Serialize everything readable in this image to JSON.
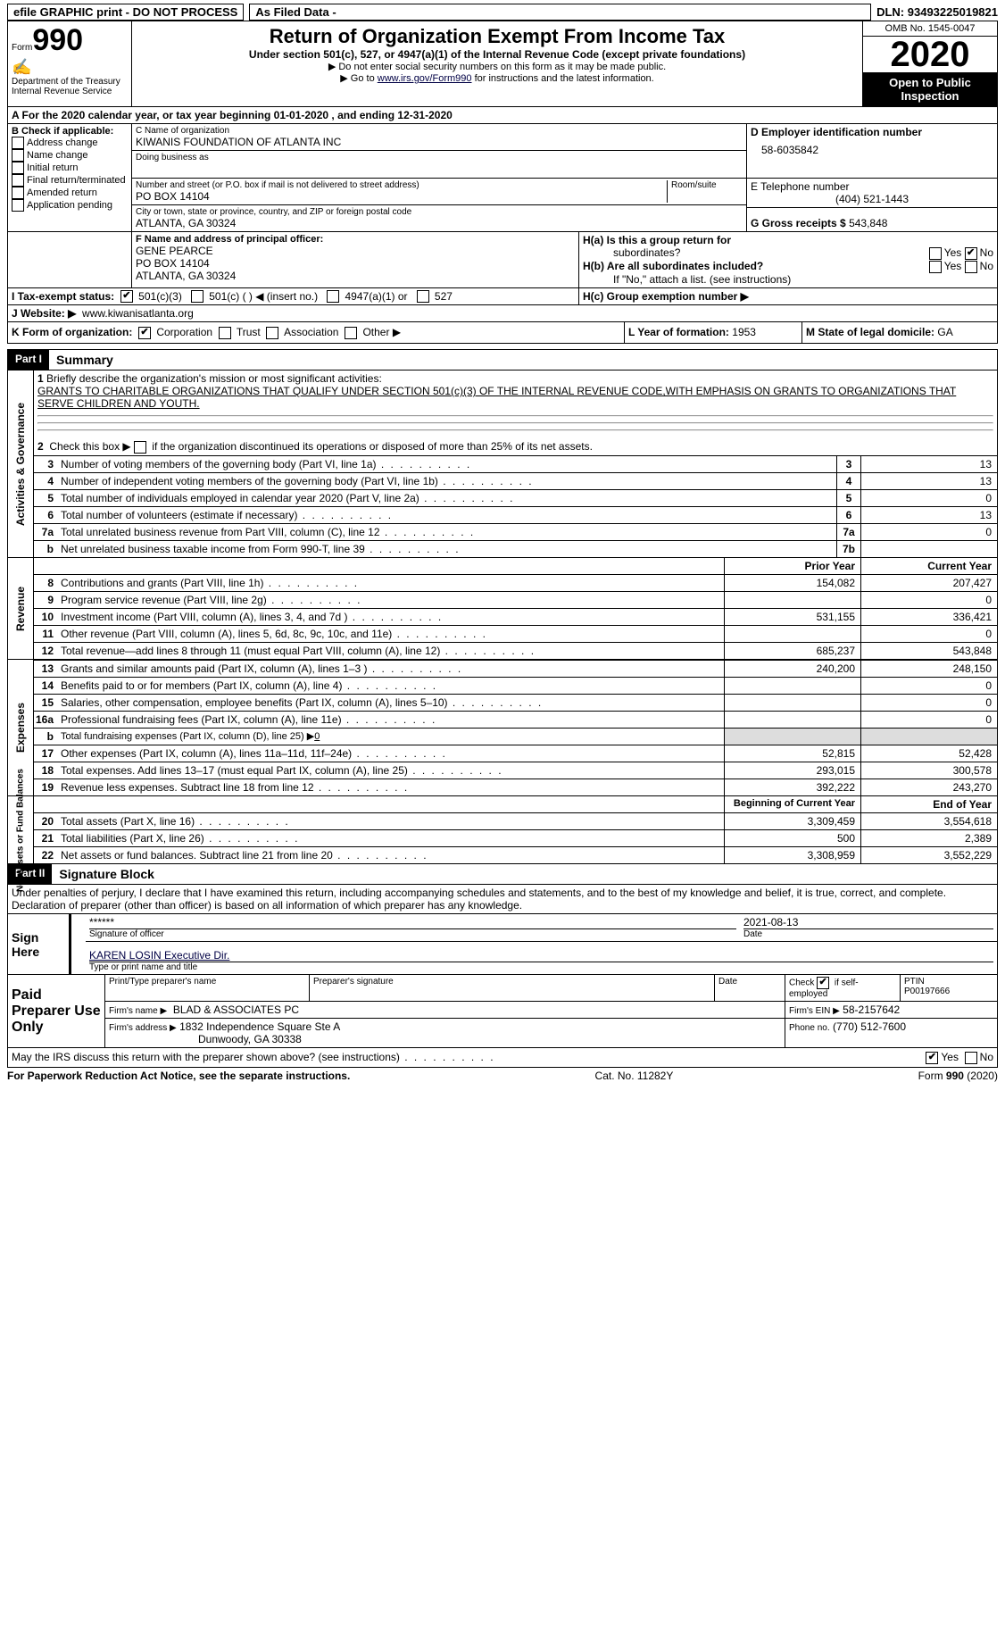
{
  "topbar": {
    "efile": "efile GRAPHIC print - DO NOT PROCESS",
    "asfd": "As Filed Data -",
    "dln_label": "DLN:",
    "dln": "93493225019821"
  },
  "header": {
    "form_label": "Form",
    "form_no": "990",
    "dept": "Department of the Treasury",
    "irs": "Internal Revenue Service",
    "title": "Return of Organization Exempt From Income Tax",
    "sub1": "Under section 501(c), 527, or 4947(a)(1) of the Internal Revenue Code (except private foundations)",
    "sub2": "▶ Do not enter social security numbers on this form as it may be made public.",
    "sub3_pre": "▶ Go to ",
    "sub3_link": "www.irs.gov/Form990",
    "sub3_post": " for instructions and the latest information.",
    "omb": "OMB No. 1545-0047",
    "year": "2020",
    "open": "Open to Public Inspection"
  },
  "rowA": {
    "pre": "A  For the 2020 calendar year, or tax year beginning ",
    "begin": "01-01-2020",
    "mid": " , and ending ",
    "end": "12-31-2020"
  },
  "B": {
    "hdr": "B Check if applicable:",
    "items": [
      "Address change",
      "Name change",
      "Initial return",
      "Final return/terminated",
      "Amended return",
      "Application pending"
    ]
  },
  "C": {
    "name_lbl": "C Name of organization",
    "name": "KIWANIS FOUNDATION OF ATLANTA INC",
    "dba_lbl": "Doing business as",
    "dba": "",
    "street_lbl": "Number and street (or P.O. box if mail is not delivered to street address)",
    "room_lbl": "Room/suite",
    "street": "PO BOX 14104",
    "city_lbl": "City or town, state or province, country, and ZIP or foreign postal code",
    "city": "ATLANTA, GA  30324"
  },
  "D": {
    "lbl": "D Employer identification number",
    "val": "58-6035842"
  },
  "E": {
    "lbl": "E Telephone number",
    "val": "(404) 521-1443"
  },
  "G": {
    "lbl": "G Gross receipts $",
    "val": "543,848"
  },
  "F": {
    "lbl": "F  Name and address of principal officer:",
    "name": "GENE PEARCE",
    "l1": "PO BOX 14104",
    "l2": "ATLANTA, GA  30324"
  },
  "H": {
    "a": "H(a)  Is this a group return for",
    "a2": "subordinates?",
    "b": "H(b)  Are all subordinates included?",
    "note": "If \"No,\" attach a list. (see instructions)",
    "c": "H(c)  Group exemption number ▶",
    "yes": "Yes",
    "no": "No"
  },
  "I": {
    "lbl": "I  Tax-exempt status:",
    "o1": "501(c)(3)",
    "o2": "501(c) (   ) ◀ (insert no.)",
    "o3": "4947(a)(1) or",
    "o4": "527"
  },
  "J": {
    "lbl": "J  Website: ▶",
    "val": "www.kiwanisatlanta.org"
  },
  "K": {
    "lbl": "K Form of organization:",
    "o1": "Corporation",
    "o2": "Trust",
    "o3": "Association",
    "o4": "Other ▶"
  },
  "L": {
    "lbl": "L Year of formation:",
    "val": "1953"
  },
  "M": {
    "lbl": "M State of legal domicile:",
    "val": "GA"
  },
  "partI": {
    "num": "Part I",
    "title": "Summary"
  },
  "gov": {
    "side": "Activities & Governance",
    "l1_lbl": "Briefly describe the organization's mission or most significant activities:",
    "l1_txt": "GRANTS TO CHARITABLE ORGANIZATIONS THAT QUALIFY UNDER SECTION 501(c)(3) OF THE INTERNAL REVENUE CODE,WITH EMPHASIS ON GRANTS TO ORGANIZATIONS THAT SERVE CHILDREN AND YOUTH.",
    "l2": "Check this box ▶       if the organization discontinued its operations or disposed of more than 25% of its net assets.",
    "rows": [
      {
        "n": "3",
        "d": "Number of voting members of the governing body (Part VI, line 1a)",
        "b": "3",
        "v": "13"
      },
      {
        "n": "4",
        "d": "Number of independent voting members of the governing body (Part VI, line 1b)",
        "b": "4",
        "v": "13"
      },
      {
        "n": "5",
        "d": "Total number of individuals employed in calendar year 2020 (Part V, line 2a)",
        "b": "5",
        "v": "0"
      },
      {
        "n": "6",
        "d": "Total number of volunteers (estimate if necessary)",
        "b": "6",
        "v": "13"
      },
      {
        "n": "7a",
        "d": "Total unrelated business revenue from Part VIII, column (C), line 12",
        "b": "7a",
        "v": "0"
      },
      {
        "n": "b",
        "d": "Net unrelated business taxable income from Form 990-T, line 39",
        "b": "7b",
        "v": ""
      }
    ]
  },
  "colhdr": {
    "py": "Prior Year",
    "cy": "Current Year"
  },
  "rev": {
    "side": "Revenue",
    "rows": [
      {
        "n": "8",
        "d": "Contributions and grants (Part VIII, line 1h)",
        "py": "154,082",
        "cy": "207,427"
      },
      {
        "n": "9",
        "d": "Program service revenue (Part VIII, line 2g)",
        "py": "",
        "cy": "0"
      },
      {
        "n": "10",
        "d": "Investment income (Part VIII, column (A), lines 3, 4, and 7d )",
        "py": "531,155",
        "cy": "336,421"
      },
      {
        "n": "11",
        "d": "Other revenue (Part VIII, column (A), lines 5, 6d, 8c, 9c, 10c, and 11e)",
        "py": "",
        "cy": "0"
      },
      {
        "n": "12",
        "d": "Total revenue—add lines 8 through 11 (must equal Part VIII, column (A), line 12)",
        "py": "685,237",
        "cy": "543,848"
      }
    ]
  },
  "exp": {
    "side": "Expenses",
    "rows": [
      {
        "n": "13",
        "d": "Grants and similar amounts paid (Part IX, column (A), lines 1–3 )",
        "py": "240,200",
        "cy": "248,150"
      },
      {
        "n": "14",
        "d": "Benefits paid to or for members (Part IX, column (A), line 4)",
        "py": "",
        "cy": "0"
      },
      {
        "n": "15",
        "d": "Salaries, other compensation, employee benefits (Part IX, column (A), lines 5–10)",
        "py": "",
        "cy": "0"
      },
      {
        "n": "16a",
        "d": "Professional fundraising fees (Part IX, column (A), line 11e)",
        "py": "",
        "cy": "0"
      }
    ],
    "l16b_pre": "Total fundraising expenses (Part IX, column (D), line 25) ▶",
    "l16b_val": "0",
    "rows2": [
      {
        "n": "17",
        "d": "Other expenses (Part IX, column (A), lines 11a–11d, 11f–24e)",
        "py": "52,815",
        "cy": "52,428"
      },
      {
        "n": "18",
        "d": "Total expenses. Add lines 13–17 (must equal Part IX, column (A), line 25)",
        "py": "293,015",
        "cy": "300,578"
      },
      {
        "n": "19",
        "d": "Revenue less expenses. Subtract line 18 from line 12",
        "py": "392,222",
        "cy": "243,270"
      }
    ]
  },
  "na": {
    "side": "Net Assets or Fund Balances",
    "hdr_py": "Beginning of Current Year",
    "hdr_cy": "End of Year",
    "rows": [
      {
        "n": "20",
        "d": "Total assets (Part X, line 16)",
        "py": "3,309,459",
        "cy": "3,554,618"
      },
      {
        "n": "21",
        "d": "Total liabilities (Part X, line 26)",
        "py": "500",
        "cy": "2,389"
      },
      {
        "n": "22",
        "d": "Net assets or fund balances. Subtract line 21 from line 20",
        "py": "3,308,959",
        "cy": "3,552,229"
      }
    ]
  },
  "partII": {
    "num": "Part II",
    "title": "Signature Block"
  },
  "sig": {
    "decl": "Under penalties of perjury, I declare that I have examined this return, including accompanying schedules and statements, and to the best of my knowledge and belief, it is true, correct, and complete. Declaration of preparer (other than officer) is based on all information of which preparer has any knowledge.",
    "sign_here": "Sign Here",
    "stars": "******",
    "sig_lbl": "Signature of officer",
    "date": "2021-08-13",
    "date_lbl": "Date",
    "name": "KAREN LOSIN  Executive Dir.",
    "name_lbl": "Type or print name and title",
    "paid": "Paid Preparer Use Only",
    "p_name_lbl": "Print/Type preparer's name",
    "p_sig_lbl": "Preparer's signature",
    "p_date_lbl": "Date",
    "check_lbl": "Check",
    "self": "if self-employed",
    "ptin_lbl": "PTIN",
    "ptin": "P00197666",
    "firm_lbl": "Firm's name   ▶",
    "firm": "BLAD & ASSOCIATES PC",
    "ein_lbl": "Firm's EIN ▶",
    "ein": "58-2157642",
    "addr_lbl": "Firm's address ▶",
    "addr1": "1832 Independence Square Ste A",
    "addr2": "Dunwoody, GA  30338",
    "phone_lbl": "Phone no.",
    "phone": "(770) 512-7600",
    "discuss": "May the IRS discuss this return with the preparer shown above? (see instructions)",
    "yes": "Yes",
    "no": "No"
  },
  "footer": {
    "l": "For Paperwork Reduction Act Notice, see the separate instructions.",
    "m": "Cat. No. 11282Y",
    "r": "Form 990 (2020)"
  }
}
